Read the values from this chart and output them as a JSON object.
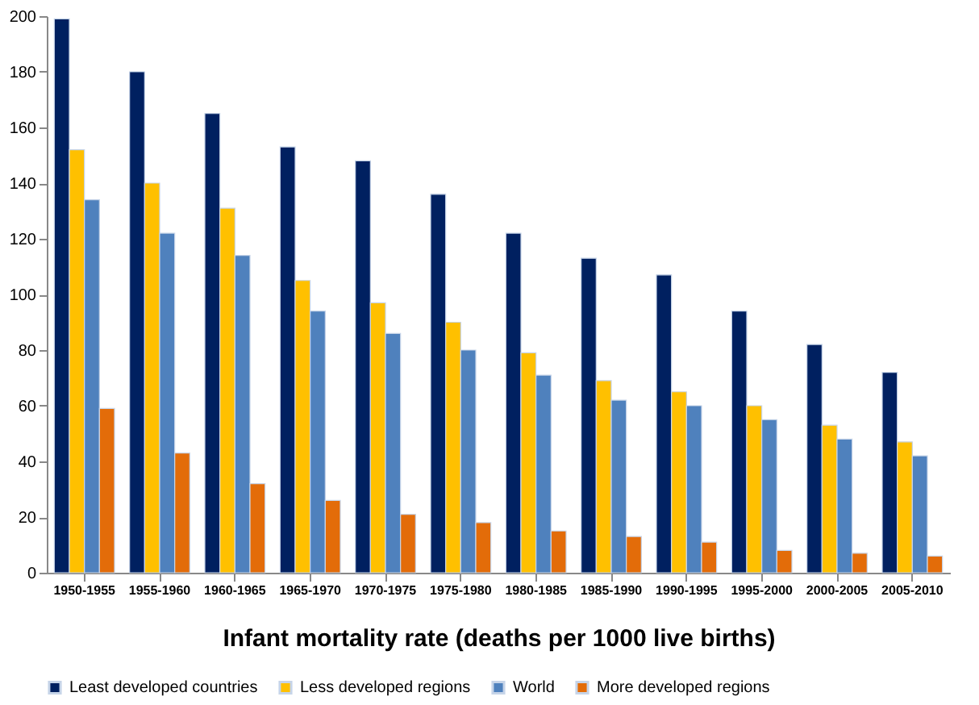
{
  "chart_data": {
    "type": "bar",
    "xlabel": "Infant mortality rate (deaths per 1000 live births)",
    "categories": [
      "1950-1955",
      "1955-1960",
      "1960-1965",
      "1965-1970",
      "1970-1975",
      "1975-1980",
      "1980-1985",
      "1985-1990",
      "1990-1995",
      "1995-2000",
      "2000-2005",
      "2005-2010"
    ],
    "series": [
      {
        "name": "Least developed countries",
        "color": "#002060",
        "values": [
          199,
          180,
          165,
          153,
          148,
          136,
          122,
          113,
          107,
          94,
          82,
          72
        ]
      },
      {
        "name": "Less developed regions",
        "color": "#ffc000",
        "values": [
          152,
          140,
          131,
          105,
          97,
          90,
          79,
          69,
          65,
          60,
          53,
          47
        ]
      },
      {
        "name": "World",
        "color": "#4f81bd",
        "values": [
          134,
          122,
          114,
          94,
          86,
          80,
          71,
          62,
          60,
          55,
          48,
          42
        ]
      },
      {
        "name": "More developed regions",
        "color": "#e36c09",
        "values": [
          59,
          43,
          32,
          26,
          21,
          18,
          15,
          13,
          11,
          8,
          7,
          6
        ]
      }
    ],
    "ylim": [
      0,
      200
    ],
    "yticks": [
      0,
      20,
      40,
      60,
      80,
      100,
      120,
      140,
      160,
      180,
      200
    ],
    "grid": false,
    "legend": "bottom"
  }
}
